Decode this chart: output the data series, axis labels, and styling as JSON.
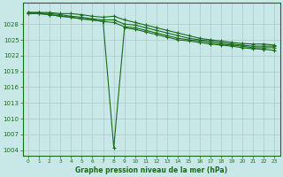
{
  "xlabel": "Graphe pression niveau de la mer (hPa)",
  "ylabel": "",
  "background_color": "#c8e8e8",
  "grid_color": "#b0c8c8",
  "line_color": "#1a6b1a",
  "xlim": [
    -0.5,
    23.5
  ],
  "ylim": [
    1003,
    1032
  ],
  "yticks": [
    1004,
    1007,
    1010,
    1013,
    1016,
    1019,
    1022,
    1025,
    1028
  ],
  "xticks": [
    0,
    1,
    2,
    3,
    4,
    5,
    6,
    7,
    8,
    9,
    10,
    11,
    12,
    13,
    14,
    15,
    16,
    17,
    18,
    19,
    20,
    21,
    22,
    23
  ],
  "series": [
    [
      1030.2,
      1030.2,
      1030.2,
      1030.0,
      1030.0,
      1029.8,
      1029.5,
      1029.3,
      1029.5,
      1028.8,
      1028.3,
      1027.8,
      1027.3,
      1026.8,
      1026.3,
      1025.8,
      1025.3,
      1025.0,
      1024.8,
      1024.5,
      1024.3,
      1024.2,
      1024.2,
      1024.0
    ],
    [
      1030.2,
      1030.2,
      1030.0,
      1029.8,
      1029.5,
      1029.3,
      1029.0,
      1028.8,
      1028.8,
      1028.0,
      1027.8,
      1027.3,
      1026.8,
      1026.3,
      1025.8,
      1025.3,
      1025.0,
      1024.8,
      1024.5,
      1024.2,
      1024.0,
      1023.8,
      1023.8,
      1023.8
    ],
    [
      1030.0,
      1030.0,
      1029.8,
      1029.5,
      1029.3,
      1029.0,
      1028.8,
      1028.5,
      1028.3,
      1027.5,
      1027.3,
      1026.8,
      1026.3,
      1025.8,
      1025.3,
      1025.0,
      1024.8,
      1024.5,
      1024.2,
      1024.0,
      1023.8,
      1023.5,
      1023.5,
      1023.5
    ],
    [
      1030.0,
      1030.0,
      1029.8,
      1029.5,
      1029.3,
      1029.0,
      1028.8,
      1028.5,
      1004.5,
      1027.3,
      1027.0,
      1026.5,
      1026.0,
      1025.5,
      1025.0,
      1024.8,
      1024.5,
      1024.2,
      1024.0,
      1023.8,
      1023.5,
      1023.3,
      1023.2,
      1023.0
    ]
  ]
}
